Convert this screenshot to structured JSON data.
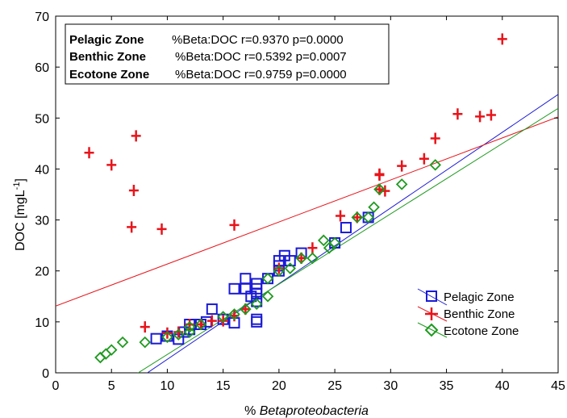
{
  "chart_data": {
    "type": "scatter",
    "xlabel_prefix": "% ",
    "xlabel_italic": "Betaproteobacteria",
    "ylabel_main": "DOC [mgL",
    "ylabel_sup": "-1",
    "ylabel_end": "]",
    "xlim": [
      0,
      45
    ],
    "ylim": [
      0,
      70
    ],
    "xticks": [
      0,
      5,
      10,
      15,
      20,
      25,
      30,
      35,
      40,
      45
    ],
    "yticks": [
      0,
      10,
      20,
      30,
      40,
      50,
      60,
      70
    ],
    "grid": false,
    "legend_position": "bottom-right",
    "stats_position": "top-left",
    "stats": [
      {
        "zone": "Pelagic Zone",
        "text": "%Beta:DOC  r=0.9370  p=0.0000"
      },
      {
        "zone": "Benthic Zone",
        "text": "%Beta:DOC  r=0.5392  p=0.0007"
      },
      {
        "zone": "Ecotone Zone",
        "text": "%Beta:DOC  r=0.9759  p=0.0000"
      }
    ],
    "series": [
      {
        "name": "Pelagic Zone",
        "marker": "square",
        "color": "#1a1ad6",
        "regression": {
          "intercept": -12.2,
          "slope": 1.485
        },
        "points": [
          [
            9,
            6.7
          ],
          [
            10,
            7.2
          ],
          [
            11,
            6.6
          ],
          [
            11.5,
            8
          ],
          [
            12,
            8.5
          ],
          [
            12,
            9.5
          ],
          [
            13,
            9.5
          ],
          [
            13.5,
            10
          ],
          [
            14,
            12.5
          ],
          [
            15,
            10.5
          ],
          [
            16,
            16.5
          ],
          [
            16,
            9.8
          ],
          [
            17,
            18.5
          ],
          [
            17,
            16.5
          ],
          [
            17.5,
            15
          ],
          [
            18,
            14
          ],
          [
            18,
            15.5
          ],
          [
            18,
            16.5
          ],
          [
            18,
            17.5
          ],
          [
            18,
            10
          ],
          [
            18,
            10.5
          ],
          [
            19,
            18.5
          ],
          [
            20,
            20
          ],
          [
            20,
            21
          ],
          [
            20,
            22
          ],
          [
            20.5,
            23
          ],
          [
            21,
            22
          ],
          [
            22,
            23.5
          ],
          [
            25,
            25.5
          ],
          [
            26,
            28.5
          ],
          [
            28,
            30.5
          ]
        ]
      },
      {
        "name": "Benthic Zone",
        "marker": "plus",
        "color": "#e8141a",
        "regression": {
          "intercept": 13.1,
          "slope": 0.825
        },
        "points": [
          [
            3,
            43.2
          ],
          [
            5,
            40.8
          ],
          [
            7,
            35.8
          ],
          [
            7.2,
            46.5
          ],
          [
            6.8,
            28.6
          ],
          [
            9.5,
            28.2
          ],
          [
            16,
            29
          ],
          [
            8,
            9
          ],
          [
            10,
            7.8
          ],
          [
            11,
            8
          ],
          [
            12,
            9.5
          ],
          [
            13,
            9.5
          ],
          [
            14,
            10.2
          ],
          [
            15,
            10.2
          ],
          [
            16,
            11.2
          ],
          [
            17,
            12.5
          ],
          [
            20,
            20.5
          ],
          [
            22,
            22.5
          ],
          [
            23,
            24.5
          ],
          [
            25.5,
            30.8
          ],
          [
            27,
            30.5
          ],
          [
            29,
            38.8
          ],
          [
            29,
            39
          ],
          [
            29,
            36
          ],
          [
            29.5,
            35.7
          ],
          [
            31,
            40.6
          ],
          [
            33,
            42
          ],
          [
            34,
            46
          ],
          [
            36,
            50.8
          ],
          [
            38,
            50.3
          ],
          [
            39,
            50.6
          ],
          [
            40,
            65.5
          ]
        ]
      },
      {
        "name": "Ecotone Zone",
        "marker": "diamond",
        "color": "#1e9a1e",
        "regression": {
          "intercept": -10.2,
          "slope": 1.38
        },
        "points": [
          [
            4,
            3
          ],
          [
            4.5,
            3.7
          ],
          [
            5,
            4.5
          ],
          [
            6,
            6
          ],
          [
            8,
            6
          ],
          [
            10,
            7
          ],
          [
            11,
            7.5
          ],
          [
            12,
            8
          ],
          [
            12,
            9
          ],
          [
            13,
            9.5
          ],
          [
            15,
            11
          ],
          [
            16,
            11.5
          ],
          [
            17,
            12.5
          ],
          [
            18,
            13.5
          ],
          [
            19,
            15
          ],
          [
            19,
            18.5
          ],
          [
            20,
            20
          ],
          [
            21,
            20.5
          ],
          [
            22,
            22.5
          ],
          [
            23,
            22.5
          ],
          [
            24,
            26
          ],
          [
            24.5,
            24.5
          ],
          [
            25,
            25.5
          ],
          [
            27,
            30.5
          ],
          [
            28,
            30.5
          ],
          [
            28.5,
            32.5
          ],
          [
            29,
            36
          ],
          [
            31,
            37
          ],
          [
            34,
            40.8
          ]
        ]
      }
    ]
  }
}
